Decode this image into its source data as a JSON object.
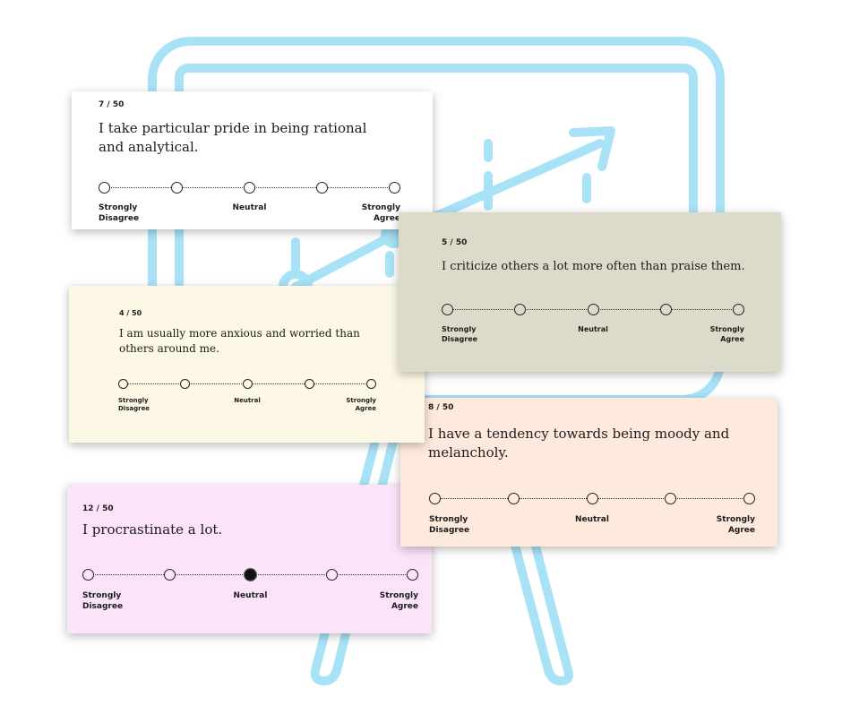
{
  "scale_labels": {
    "left": "Strongly\nDisagree",
    "mid": "Neutral",
    "right": "Strongly\nAgree"
  },
  "colors": {
    "easel": "#a8e2f7"
  },
  "cards": [
    {
      "id": "pink",
      "counter": "12 / 50",
      "question": "I procrastinate a lot.",
      "background": "#fbe3fa",
      "selected": 2
    },
    {
      "id": "peach",
      "counter": "8 / 50",
      "question": "I have a tendency towards being moody and melancholy.",
      "background": "#fee9dd",
      "selected": null
    },
    {
      "id": "cream",
      "counter": "4 / 50",
      "question": "I am usually more anxious and worried than others around me.",
      "background": "#fdf7e5",
      "selected": null
    },
    {
      "id": "white",
      "counter": "7 / 50",
      "question": "I take particular pride in being rational and analytical.",
      "background": "#ffffff",
      "selected": null
    },
    {
      "id": "gray",
      "counter": "5 / 50",
      "question": "I criticize others a lot more often than praise them.",
      "background": "#dcdbc9",
      "selected": null
    }
  ]
}
